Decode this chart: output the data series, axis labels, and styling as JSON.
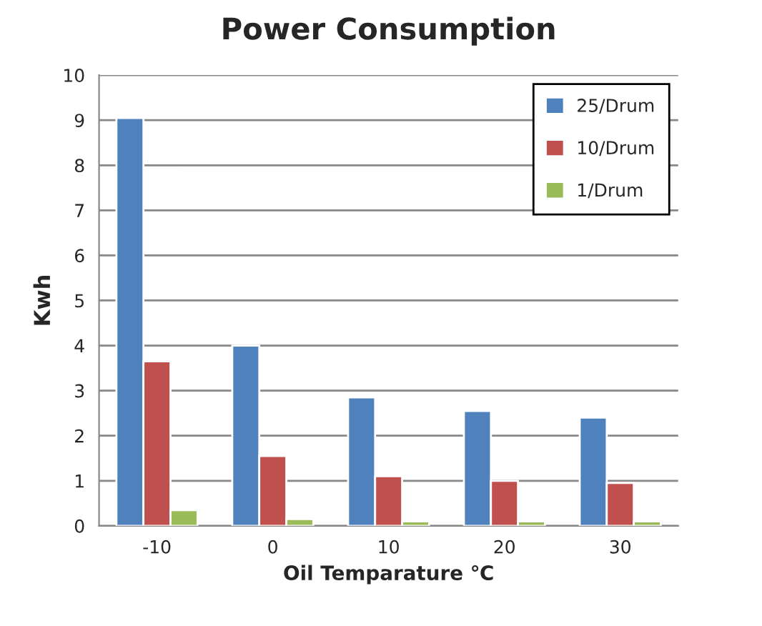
{
  "chart_data": {
    "type": "bar",
    "title": "Power Consumption",
    "xlabel": "Oil Temparature ℃",
    "ylabel": "Kwh",
    "categories": [
      "-10",
      "0",
      "10",
      "20",
      "30"
    ],
    "series": [
      {
        "name": "25/Drum",
        "color": "#4f81bd",
        "values": [
          9.05,
          4.0,
          2.85,
          2.55,
          2.4
        ]
      },
      {
        "name": "10/Drum",
        "color": "#c0504d",
        "values": [
          3.65,
          1.55,
          1.1,
          1.0,
          0.95
        ]
      },
      {
        "name": "1/Drum",
        "color": "#9bbb59",
        "values": [
          0.35,
          0.15,
          0.1,
          0.1,
          0.1
        ]
      }
    ],
    "ylim": [
      0,
      10
    ],
    "yticks": [
      0,
      1,
      2,
      3,
      4,
      5,
      6,
      7,
      8,
      9,
      10
    ],
    "grid": "y",
    "legend": "top right"
  }
}
